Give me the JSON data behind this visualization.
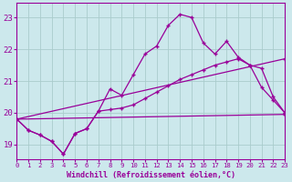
{
  "background_color": "#cce8ec",
  "grid_color": "#aacccc",
  "line_color": "#990099",
  "xlabel": "Windchill (Refroidissement éolien,°C)",
  "xlim": [
    0,
    23
  ],
  "ylim": [
    18.55,
    23.45
  ],
  "yticks": [
    19,
    20,
    21,
    22,
    23
  ],
  "xticks": [
    0,
    1,
    2,
    3,
    4,
    5,
    6,
    7,
    8,
    9,
    10,
    11,
    12,
    13,
    14,
    15,
    16,
    17,
    18,
    19,
    20,
    21,
    22,
    23
  ],
  "line1_x": [
    0,
    1,
    2,
    3,
    4,
    5,
    6,
    7,
    8,
    9,
    10,
    11,
    12,
    13,
    14,
    15,
    16,
    17,
    18,
    19,
    20,
    21,
    22,
    23
  ],
  "line1_y": [
    19.8,
    19.45,
    19.3,
    19.1,
    18.7,
    19.35,
    19.5,
    20.05,
    20.75,
    20.55,
    21.2,
    21.85,
    22.1,
    22.75,
    23.1,
    23.0,
    22.2,
    21.85,
    22.25,
    21.75,
    21.5,
    20.8,
    20.4,
    20.0
  ],
  "line2_x": [
    0,
    1,
    2,
    3,
    4,
    5,
    6,
    7,
    8,
    9,
    10,
    11,
    12,
    13,
    14,
    15,
    16,
    17,
    18,
    19,
    20,
    21,
    22,
    23
  ],
  "line2_y": [
    19.8,
    19.45,
    19.3,
    19.1,
    18.7,
    19.35,
    19.5,
    20.05,
    20.1,
    20.15,
    20.25,
    20.45,
    20.65,
    20.85,
    21.05,
    21.2,
    21.35,
    21.5,
    21.6,
    21.7,
    21.5,
    21.4,
    20.5,
    20.0
  ],
  "line3_x": [
    0,
    23
  ],
  "line3_y": [
    19.8,
    21.7
  ],
  "line4_x": [
    0,
    23
  ],
  "line4_y": [
    19.8,
    19.95
  ]
}
